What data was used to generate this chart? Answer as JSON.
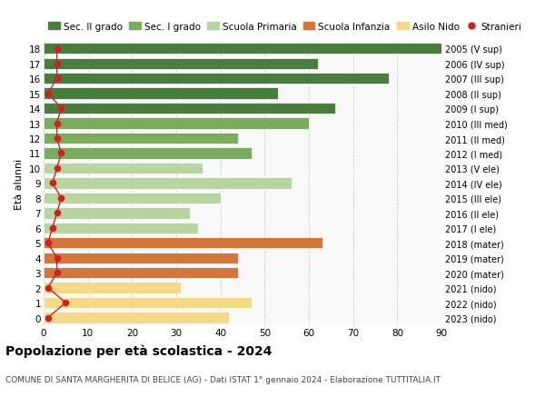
{
  "ages": [
    18,
    17,
    16,
    15,
    14,
    13,
    12,
    11,
    10,
    9,
    8,
    7,
    6,
    5,
    4,
    3,
    2,
    1,
    0
  ],
  "right_labels": [
    "2005 (V sup)",
    "2006 (IV sup)",
    "2007 (III sup)",
    "2008 (II sup)",
    "2009 (I sup)",
    "2010 (III med)",
    "2011 (II med)",
    "2012 (I med)",
    "2013 (V ele)",
    "2014 (IV ele)",
    "2015 (III ele)",
    "2016 (II ele)",
    "2017 (I ele)",
    "2018 (mater)",
    "2019 (mater)",
    "2020 (mater)",
    "2021 (nido)",
    "2022 (nido)",
    "2023 (nido)"
  ],
  "bar_values": [
    92,
    62,
    78,
    53,
    66,
    60,
    44,
    47,
    36,
    56,
    40,
    33,
    35,
    63,
    44,
    44,
    31,
    47,
    42
  ],
  "bar_colors": [
    "#4a7c3f",
    "#4a7c3f",
    "#4a7c3f",
    "#4a7c3f",
    "#4a7c3f",
    "#7aab5e",
    "#7aab5e",
    "#7aab5e",
    "#b8d4a0",
    "#b8d4a0",
    "#b8d4a0",
    "#b8d4a0",
    "#b8d4a0",
    "#d4763b",
    "#d4763b",
    "#d4763b",
    "#f5d98b",
    "#f5d98b",
    "#f5d98b"
  ],
  "stranieri_values": [
    3,
    3,
    3,
    1,
    4,
    3,
    3,
    4,
    3,
    2,
    4,
    3,
    2,
    1,
    3,
    3,
    1,
    5,
    1
  ],
  "legend_labels": [
    "Sec. II grado",
    "Sec. I grado",
    "Scuola Primaria",
    "Scuola Infanzia",
    "Asilo Nido",
    "Stranieri"
  ],
  "legend_colors": [
    "#4a7c3f",
    "#7aab5e",
    "#b8d4a0",
    "#d4763b",
    "#f5d98b",
    "#cc2222"
  ],
  "title": "Popolazione per età scolastica - 2024",
  "subtitle": "COMUNE DI SANTA MARGHERITA DI BELICE (AG) - Dati ISTAT 1° gennaio 2024 - Elaborazione TUTTITALIA.IT",
  "ylabel_left": "Età alunni",
  "xlim": [
    0,
    90
  ],
  "background_color": "#ffffff",
  "plot_bg_color": "#f9f9f9",
  "grid_color": "#cccccc"
}
